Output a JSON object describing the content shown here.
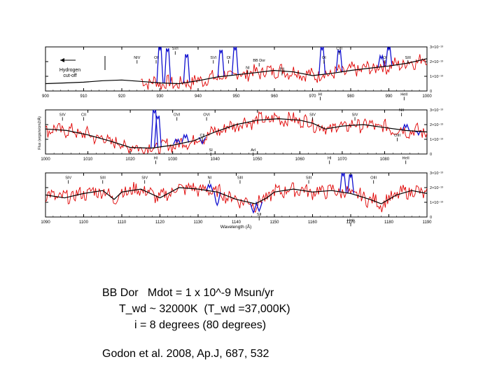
{
  "chart_data": {
    "type": "line",
    "title": "",
    "ylabel": "Flux (ergs/s/cm2/Å)",
    "xlabel": "Wavelength (Å)",
    "flux_unit_label": "×10⁻¹³",
    "colors": {
      "observed": "#e00000",
      "airglow": "#1010d0",
      "model": "#000000"
    },
    "panels": [
      {
        "xlim": [
          900,
          1000
        ],
        "ylim": [
          0,
          3.0
        ],
        "xticks": [
          "900",
          "910",
          "920",
          "930",
          "940",
          "950",
          "960",
          "970",
          "980",
          "990",
          "1000"
        ],
        "yticks": [
          "0",
          "1×10⁻¹³",
          "2×10⁻¹³",
          "3×10⁻¹³"
        ],
        "ytick_values": [
          0,
          1,
          2,
          3
        ],
        "obs_start": 925,
        "model": [
          [
            900,
            0.5
          ],
          [
            905,
            0.55
          ],
          [
            910,
            0.6
          ],
          [
            915,
            0.7
          ],
          [
            920,
            0.75
          ],
          [
            925,
            0.65
          ],
          [
            930,
            0.55
          ],
          [
            935,
            0.5
          ],
          [
            940,
            0.7
          ],
          [
            945,
            0.95
          ],
          [
            950,
            1.1
          ],
          [
            955,
            1.25
          ],
          [
            960,
            1.4
          ],
          [
            965,
            1.3
          ],
          [
            970,
            1.05
          ],
          [
            975,
            1.2
          ],
          [
            980,
            1.4
          ],
          [
            985,
            1.55
          ],
          [
            990,
            1.7
          ],
          [
            995,
            1.9
          ],
          [
            1000,
            2.2
          ]
        ],
        "airglow": [
          [
            930,
            3.0
          ],
          [
            932,
            2.9
          ],
          [
            937,
            2.5
          ],
          [
            946,
            2.8
          ],
          [
            949.7,
            3.0
          ],
          [
            972.5,
            3.0
          ],
          [
            977,
            2.8
          ],
          [
            988,
            2.4
          ],
          [
            990,
            3.0
          ]
        ],
        "labels": [
          {
            "text": "NIV",
            "x": 924,
            "y": 2.2
          },
          {
            "text": "OI",
            "x": 929,
            "y": 2.2
          },
          {
            "text": "SVI",
            "x": 934,
            "y": 2.8
          },
          {
            "text": "OI",
            "x": 948,
            "y": 2.2
          },
          {
            "text": "SVI",
            "x": 944,
            "y": 2.2
          },
          {
            "text": "NI",
            "x": 953,
            "y": 1.5
          },
          {
            "text": "BB Dor",
            "x": 956,
            "y": 2.0
          },
          {
            "text": "PII",
            "x": 962,
            "y": 1.4
          },
          {
            "text": "OI",
            "x": 973,
            "y": 2.2
          },
          {
            "text": "CIII",
            "x": 977,
            "y": 2.8
          },
          {
            "text": "OI",
            "x": 989,
            "y": 2.2
          },
          {
            "text": "SIII",
            "x": 995,
            "y": 2.2
          },
          {
            "text": "HI",
            "x": 972,
            "y": -0.3
          },
          {
            "text": "HeII",
            "x": 994,
            "y": -0.3
          }
        ],
        "note": "Hydrogen cut-off"
      },
      {
        "xlim": [
          1000,
          1090
        ],
        "ylim": [
          0,
          3.0
        ],
        "xticks": [
          "1000",
          "1010",
          "1020",
          "1030",
          "1040",
          "1050",
          "1060",
          "1070",
          "1080"
        ],
        "yticks": [
          "0",
          "1×10⁻¹³",
          "2×10⁻¹³",
          "3×10⁻¹³"
        ],
        "ytick_values": [
          0,
          1,
          2,
          3
        ],
        "obs_start": 1000,
        "model": [
          [
            1000,
            1.7
          ],
          [
            1005,
            1.6
          ],
          [
            1010,
            1.3
          ],
          [
            1015,
            0.9
          ],
          [
            1020,
            0.45
          ],
          [
            1025,
            0.4
          ],
          [
            1030,
            0.6
          ],
          [
            1035,
            0.9
          ],
          [
            1040,
            1.5
          ],
          [
            1045,
            2.0
          ],
          [
            1050,
            2.3
          ],
          [
            1055,
            2.4
          ],
          [
            1060,
            2.3
          ],
          [
            1063,
            2.1
          ],
          [
            1066,
            1.7
          ],
          [
            1070,
            1.9
          ],
          [
            1075,
            2.0
          ],
          [
            1080,
            1.8
          ],
          [
            1085,
            1.6
          ],
          [
            1090,
            1.5
          ]
        ],
        "airglow": [
          [
            1025.7,
            3.0
          ],
          [
            1026.5,
            2.6
          ],
          [
            1031,
            1.0
          ],
          [
            1033,
            1.3
          ],
          [
            1037,
            0.9
          ],
          [
            1085,
            2.0
          ],
          [
            1088,
            1.5
          ]
        ],
        "labels": [
          {
            "text": "SIV",
            "x": 1004,
            "y": 2.6
          },
          {
            "text": "CII",
            "x": 1009,
            "y": 2.6
          },
          {
            "text": "OVI",
            "x": 1031,
            "y": 2.6
          },
          {
            "text": "OVI",
            "x": 1038,
            "y": 2.6
          },
          {
            "text": "CII",
            "x": 1037,
            "y": 1.2
          },
          {
            "text": "SIV",
            "x": 1063,
            "y": 2.6
          },
          {
            "text": "SIV",
            "x": 1073,
            "y": 2.6
          },
          {
            "text": "NII",
            "x": 1084,
            "y": 2.9
          },
          {
            "text": "OIII",
            "x": 1083,
            "y": 1.2
          },
          {
            "text": "HI",
            "x": 1026,
            "y": -0.35
          },
          {
            "text": "SI",
            "x": 1039,
            "y": 0.2
          },
          {
            "text": "ArI",
            "x": 1049,
            "y": 0.2
          },
          {
            "text": "HI",
            "x": 1067,
            "y": -0.35
          },
          {
            "text": "HeII",
            "x": 1085,
            "y": -0.35
          }
        ]
      },
      {
        "xlim": [
          1090,
          1190
        ],
        "ylim": [
          0,
          3.0
        ],
        "xticks": [
          "1090",
          "1100",
          "1110",
          "1120",
          "1130",
          "1140",
          "1150",
          "1160",
          "1170",
          "1180",
          "1190"
        ],
        "yticks": [
          "0",
          "1×10⁻¹³",
          "2×10⁻¹³",
          "3×10⁻¹³"
        ],
        "ytick_values": [
          0,
          1,
          2,
          3
        ],
        "obs_start": 1090,
        "model": [
          [
            1090,
            1.5
          ],
          [
            1095,
            1.3
          ],
          [
            1100,
            1.6
          ],
          [
            1105,
            1.8
          ],
          [
            1108,
            1.2
          ],
          [
            1110,
            1.7
          ],
          [
            1115,
            1.9
          ],
          [
            1120,
            1.3
          ],
          [
            1125,
            2.0
          ],
          [
            1130,
            1.9
          ],
          [
            1135,
            1.7
          ],
          [
            1140,
            1.2
          ],
          [
            1145,
            0.9
          ],
          [
            1148,
            1.3
          ],
          [
            1150,
            1.7
          ],
          [
            1155,
            1.9
          ],
          [
            1160,
            1.7
          ],
          [
            1165,
            1.8
          ],
          [
            1170,
            1.6
          ],
          [
            1175,
            1.2
          ],
          [
            1178,
            0.9
          ],
          [
            1182,
            1.5
          ],
          [
            1186,
            1.8
          ],
          [
            1190,
            1.6
          ]
        ],
        "airglow": [
          [
            1133,
            2.2
          ],
          [
            1135,
            1.0
          ],
          [
            1144.5,
            0.5
          ],
          [
            1146,
            0.6
          ],
          [
            1168,
            3.0
          ],
          [
            1170,
            2.9
          ]
        ],
        "labels": [
          {
            "text": "SIV",
            "x": 1096,
            "y": 2.6
          },
          {
            "text": "SIII",
            "x": 1105,
            "y": 2.6
          },
          {
            "text": "SIV",
            "x": 1116,
            "y": 2.6
          },
          {
            "text": "NI",
            "x": 1133,
            "y": 2.6
          },
          {
            "text": "SIII",
            "x": 1141,
            "y": 2.6
          },
          {
            "text": "SIII",
            "x": 1159,
            "y": 2.6
          },
          {
            "text": "OIII",
            "x": 1176,
            "y": 2.6
          },
          {
            "text": "SII",
            "x": 1146,
            "y": 0.1
          },
          {
            "text": "HeII",
            "x": 1170,
            "y": -0.3
          }
        ]
      }
    ]
  },
  "caption": {
    "line1": "BB Dor   Mdot = 1 x 10^-9 Msun/yr",
    "line2": "T_wd ~ 32000K  (T_wd =37,000K)",
    "line3": "i = 8 degrees (80 degrees)",
    "line4": "Godon et al. 2008, Ap.J, 687, 532"
  }
}
